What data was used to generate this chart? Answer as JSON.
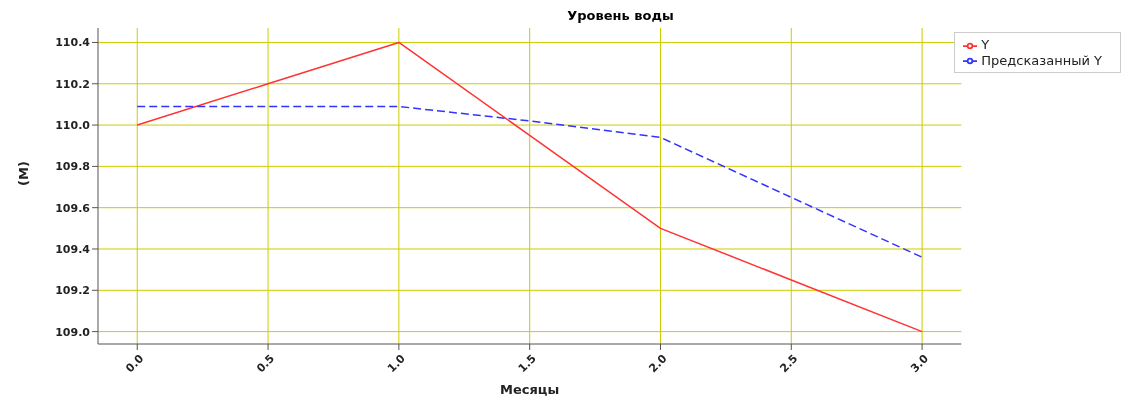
{
  "chart_data": {
    "type": "line",
    "title": "Уровень воды",
    "xlabel": "Месяцы",
    "ylabel": "(М)",
    "x": [
      0,
      0.5,
      1,
      1.5,
      2,
      2.5,
      3
    ],
    "series": [
      {
        "name": "Y",
        "color": "#ff3333",
        "line_style": "solid",
        "values": [
          110.0,
          110.2,
          110.4,
          109.95,
          109.5,
          109.25,
          109.0
        ]
      },
      {
        "name": "Предсказанный Y",
        "color": "#3333ff",
        "line_style": "dashed",
        "values": [
          110.09,
          110.09,
          110.09,
          110.02,
          109.94,
          109.65,
          109.36
        ]
      }
    ],
    "xlim": [
      -0.15,
      3.15
    ],
    "xticks": [
      {
        "value": 0,
        "label": "0.0"
      },
      0.5,
      {
        "value": 1,
        "label": "1.0"
      },
      1.5,
      {
        "value": 2,
        "label": "2.0"
      },
      2.5,
      {
        "value": 3,
        "label": "3.0"
      }
    ],
    "ylim": [
      108.94,
      110.47
    ],
    "yticks": [
      {
        "value": 109,
        "label": "109.0"
      },
      109.2,
      109.4,
      109.6,
      109.8,
      {
        "value": 110,
        "label": "110.0"
      },
      110.2,
      110.4
    ],
    "grid": true,
    "legend": "top right",
    "marker": "none"
  }
}
